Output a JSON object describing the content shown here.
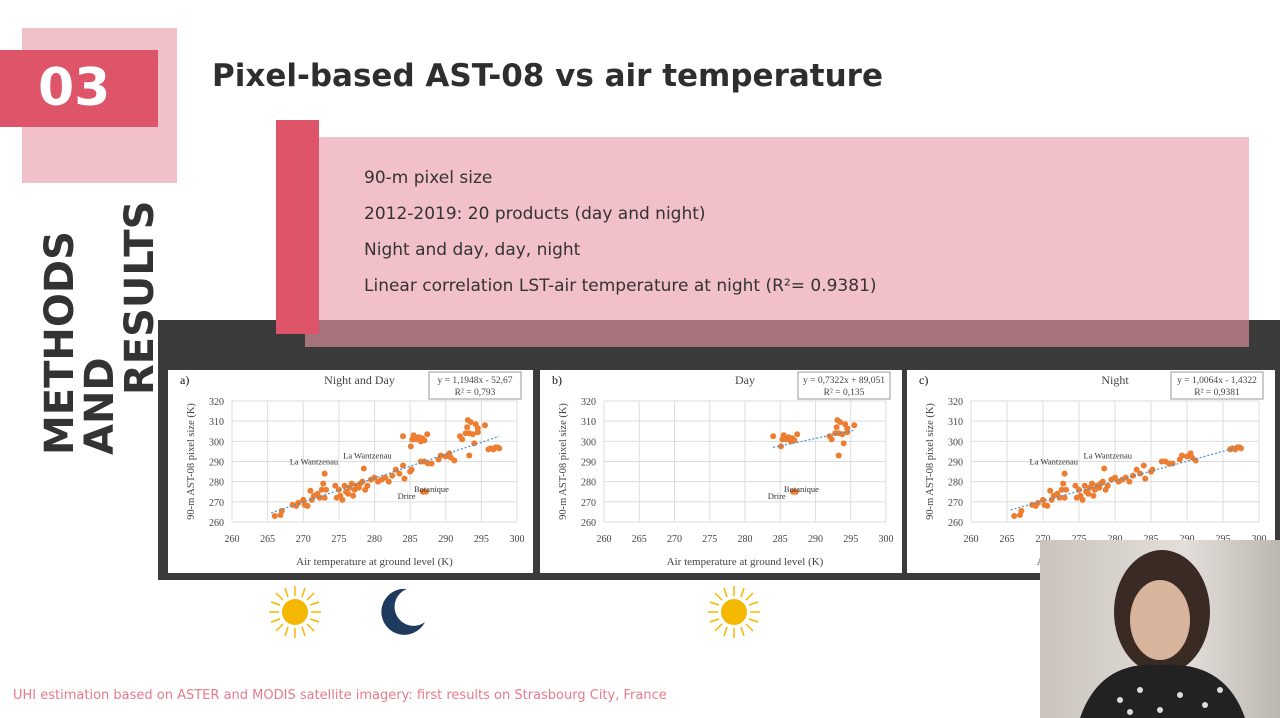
{
  "section": {
    "number": "03",
    "label_line1": "METHODS AND",
    "label_line2": "RESULTS"
  },
  "title": "Pixel-based AST-08 vs air temperature",
  "bullets": [
    "90-m pixel size",
    "2012-2019: 20 products (day and night)",
    "Night and day, day, night",
    "Linear correlation LST-air temperature at night (R²= 0.9381)"
  ],
  "footer": "UHI estimation based on ASTER and MODIS satellite imagery: first results on Strasbourg City, France",
  "icons": [
    "sun-icon",
    "moon-icon",
    "sun-icon"
  ],
  "colors": {
    "accent": "#de5468",
    "pink": "#f1c0c8",
    "points": "#ed7d31",
    "trend": "#4a90c8"
  },
  "chart_data": [
    {
      "type": "scatter",
      "panel": "a)",
      "title": "Night and Day",
      "equation": "y = 1,1948x - 52,67",
      "r2": "R² = 0,793",
      "xlabel": "Air temperature at ground level (K)",
      "ylabel": "90-m AST-08 pixel size (K)",
      "xlim": [
        260,
        300
      ],
      "ylim": [
        260,
        320
      ],
      "xticks": [
        260,
        265,
        270,
        275,
        280,
        285,
        290,
        295,
        300
      ],
      "yticks": [
        260,
        270,
        280,
        290,
        300,
        310,
        320
      ],
      "series": [
        "night",
        "day"
      ],
      "trend": [
        [
          265.5,
          264.5
        ],
        [
          297.5,
          302.5
        ]
      ],
      "annotations": [
        {
          "text": "La Wantzenau",
          "x": 271.5,
          "y": 288.5
        },
        {
          "text": "La Wantzenau",
          "x": 279,
          "y": 291.5
        },
        {
          "text": "Botanique",
          "x": 288,
          "y": 275
        },
        {
          "text": "Drire",
          "x": 284.5,
          "y": 271.5
        }
      ]
    },
    {
      "type": "scatter",
      "panel": "b)",
      "title": "Day",
      "equation": "y = 0,7322x + 89,051",
      "r2": "R² = 0,135",
      "xlabel": "Air temperature at ground level (K)",
      "ylabel": "90-m AST-08 pixel size (K)",
      "xlim": [
        260,
        300
      ],
      "ylim": [
        260,
        320
      ],
      "xticks": [
        260,
        265,
        270,
        275,
        280,
        285,
        290,
        295,
        300
      ],
      "yticks": [
        260,
        270,
        280,
        290,
        300,
        310,
        320
      ],
      "series": [
        "day"
      ],
      "trend": [
        [
          284,
          297
        ],
        [
          295.5,
          305.5
        ]
      ],
      "annotations": [
        {
          "text": "Botanique",
          "x": 288,
          "y": 275
        },
        {
          "text": "Drire",
          "x": 284.5,
          "y": 271.5
        }
      ]
    },
    {
      "type": "scatter",
      "panel": "c)",
      "title": "Night",
      "equation": "y = 1,0064x - 1,4322",
      "r2": "R² = 0,9381",
      "xlabel": "Air temperature at ground level (K)",
      "ylabel": "90-m AST-08 pixel size (K)",
      "xlim": [
        260,
        300
      ],
      "ylim": [
        260,
        320
      ],
      "xticks": [
        260,
        265,
        270,
        275,
        280,
        285,
        290,
        295,
        300
      ],
      "yticks": [
        260,
        270,
        280,
        290,
        300,
        310,
        320
      ],
      "series": [
        "night"
      ],
      "trend": [
        [
          265.5,
          266
        ],
        [
          297,
          297
        ]
      ],
      "annotations": [
        {
          "text": "La Wantzenau",
          "x": 271.5,
          "y": 288.5
        },
        {
          "text": "La Wantzenau",
          "x": 279,
          "y": 291.5
        }
      ]
    }
  ],
  "points": {
    "night": [
      [
        266,
        263
      ],
      [
        266.8,
        263.5
      ],
      [
        267,
        265.5
      ],
      [
        268.5,
        268.5
      ],
      [
        269,
        268
      ],
      [
        269.3,
        269.5
      ],
      [
        270,
        271
      ],
      [
        270.2,
        268.5
      ],
      [
        270.6,
        268
      ],
      [
        271,
        275.5
      ],
      [
        271.2,
        271
      ],
      [
        271.5,
        273
      ],
      [
        272,
        274
      ],
      [
        272.3,
        272
      ],
      [
        272.6,
        276
      ],
      [
        272.8,
        279
      ],
      [
        273,
        272
      ],
      [
        273.2,
        276
      ],
      [
        273,
        284
      ],
      [
        274.5,
        278
      ],
      [
        274.7,
        272
      ],
      [
        275,
        276
      ],
      [
        275.2,
        273
      ],
      [
        275.5,
        271
      ],
      [
        275.8,
        278
      ],
      [
        276,
        275
      ],
      [
        276.3,
        274
      ],
      [
        276.5,
        277
      ],
      [
        276.8,
        279
      ],
      [
        277,
        273
      ],
      [
        277.2,
        276
      ],
      [
        277.5,
        278
      ],
      [
        277.8,
        277
      ],
      [
        278,
        279
      ],
      [
        278.3,
        280
      ],
      [
        278.5,
        286.5
      ],
      [
        278.7,
        276
      ],
      [
        279,
        278
      ],
      [
        279.5,
        281
      ],
      [
        280,
        282
      ],
      [
        280.5,
        280
      ],
      [
        281,
        281
      ],
      [
        281.5,
        282
      ],
      [
        282,
        280
      ],
      [
        282.5,
        283
      ],
      [
        283,
        286
      ],
      [
        283.5,
        284
      ],
      [
        284,
        288
      ],
      [
        284.2,
        281.5
      ],
      [
        285,
        285
      ],
      [
        285.2,
        286
      ],
      [
        286.5,
        290
      ],
      [
        287,
        290
      ],
      [
        287.5,
        289
      ],
      [
        288,
        289
      ],
      [
        289,
        291
      ],
      [
        289.3,
        293
      ],
      [
        290,
        292.5
      ],
      [
        290.5,
        294
      ],
      [
        290.7,
        292
      ],
      [
        291.2,
        290.5
      ],
      [
        296,
        296
      ],
      [
        296.3,
        296.5
      ],
      [
        296.7,
        296
      ],
      [
        297,
        297
      ],
      [
        297.3,
        297
      ],
      [
        297.5,
        296.5
      ]
    ],
    "day": [
      [
        284,
        302.5
      ],
      [
        285.1,
        297.5
      ],
      [
        285.3,
        301
      ],
      [
        285.5,
        303
      ],
      [
        285.8,
        301
      ],
      [
        286.2,
        302
      ],
      [
        286.5,
        300
      ],
      [
        286.7,
        301.5
      ],
      [
        287,
        300.5
      ],
      [
        287.4,
        303.5
      ],
      [
        292,
        302.5
      ],
      [
        292.3,
        301
      ],
      [
        292.8,
        304
      ],
      [
        293,
        307
      ],
      [
        293.1,
        310.5
      ],
      [
        293.3,
        304
      ],
      [
        293.5,
        309.5
      ],
      [
        293.3,
        293
      ],
      [
        293.8,
        303.5
      ],
      [
        294,
        299
      ],
      [
        294.2,
        308.5
      ],
      [
        294.5,
        306.5
      ],
      [
        294.5,
        304.5
      ],
      [
        295.5,
        308
      ],
      [
        286.8,
        275
      ],
      [
        287.2,
        275
      ]
    ]
  }
}
